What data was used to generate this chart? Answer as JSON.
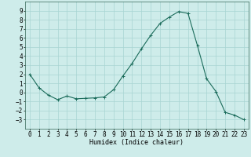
{
  "x": [
    0,
    1,
    2,
    3,
    4,
    5,
    6,
    7,
    8,
    9,
    10,
    11,
    12,
    13,
    14,
    15,
    16,
    17,
    18,
    19,
    20,
    21,
    22,
    23
  ],
  "y": [
    2.0,
    0.5,
    -0.3,
    -0.8,
    -0.4,
    -0.7,
    -0.65,
    -0.6,
    -0.5,
    0.3,
    1.8,
    3.2,
    4.8,
    6.3,
    7.6,
    8.3,
    8.9,
    8.7,
    5.2,
    1.5,
    0.1,
    -2.2,
    -2.5,
    -3.0
  ],
  "line_color": "#1a6b5a",
  "marker": "+",
  "markersize": 3,
  "linewidth": 0.8,
  "xlabel": "Humidex (Indice chaleur)",
  "xlabel_fontsize": 6,
  "ylim": [
    -4,
    10
  ],
  "xlim": [
    -0.5,
    23.5
  ],
  "yticks": [
    -3,
    -2,
    -1,
    0,
    1,
    2,
    3,
    4,
    5,
    6,
    7,
    8,
    9
  ],
  "xticks": [
    0,
    1,
    2,
    3,
    4,
    5,
    6,
    7,
    8,
    9,
    10,
    11,
    12,
    13,
    14,
    15,
    16,
    17,
    18,
    19,
    20,
    21,
    22,
    23
  ],
  "bg_color": "#ceecea",
  "grid_color": "#a8d5d3",
  "tick_fontsize": 5.5,
  "figsize": [
    3.2,
    2.0
  ],
  "dpi": 100
}
